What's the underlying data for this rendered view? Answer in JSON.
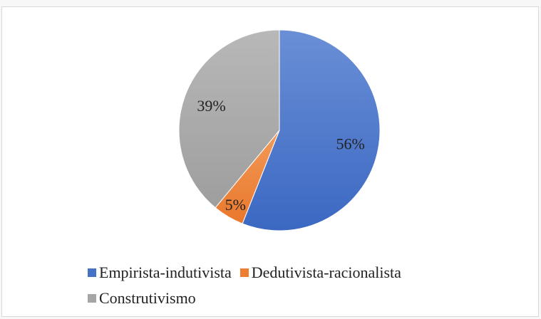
{
  "chart_data": {
    "type": "pie",
    "title": "",
    "slices": [
      {
        "name": "Empirista-indutivista",
        "value": 56,
        "label": "56%",
        "color": "#4472c4"
      },
      {
        "name": "Dedutivista-racionalista",
        "value": 5,
        "label": "5%",
        "color": "#ed7d31"
      },
      {
        "name": "Construtivismo",
        "value": 39,
        "label": "39%",
        "color": "#a5a5a5"
      }
    ],
    "legend_position": "bottom"
  }
}
